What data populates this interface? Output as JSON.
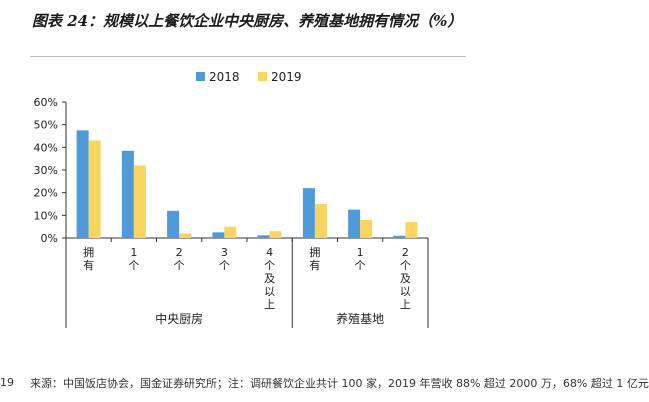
{
  "title": "图表 24：规模以上餐饮企业中央厨房、养殖基地拥有情况（%）",
  "left_edge_text": "19",
  "source_text": "来源：中国饭店协会，国金证券研究所；注：调研餐饮企业共计 100 家，2019 年营收 88% 超过 2000 万，68% 超过 1 亿元",
  "chart_data": {
    "type": "bar",
    "categories": [
      "拥有",
      "1个",
      "2个",
      "3个",
      "4个及以上",
      "拥有",
      "1个",
      "2个及以上"
    ],
    "groups": [
      {
        "name": "中央厨房",
        "start": 0,
        "count": 5
      },
      {
        "name": "养殖基地",
        "start": 5,
        "count": 3
      }
    ],
    "series": [
      {
        "name": "2018",
        "color": "#4f9ad8",
        "values": [
          47.5,
          38.5,
          12,
          2.5,
          1.2,
          22,
          12.5,
          1
        ]
      },
      {
        "name": "2019",
        "color": "#f7d560",
        "values": [
          43,
          32,
          2,
          5,
          3,
          15,
          8,
          7
        ]
      }
    ],
    "ylim": [
      0,
      60
    ],
    "yticks": [
      0,
      10,
      20,
      30,
      40,
      50,
      60
    ],
    "ytick_format": "percent",
    "legend_position": "top-center",
    "grid": false
  }
}
